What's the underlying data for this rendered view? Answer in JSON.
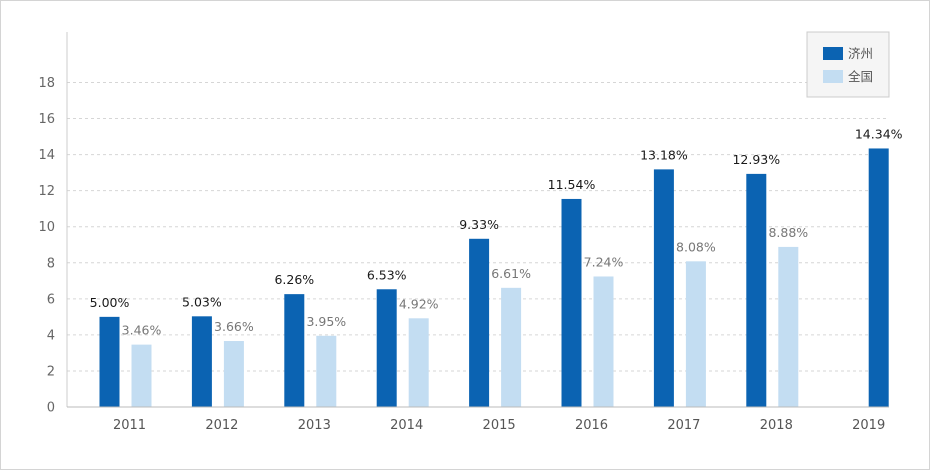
{
  "chart_data": {
    "type": "bar",
    "categories": [
      "2011",
      "2012",
      "2013",
      "2014",
      "2015",
      "2016",
      "2017",
      "2018",
      "2019"
    ],
    "series": [
      {
        "name": "济州",
        "color": "#0b63b2",
        "values": [
          5.0,
          5.03,
          6.26,
          6.53,
          9.33,
          11.54,
          13.18,
          12.93,
          14.34
        ],
        "labels": [
          "5.00%",
          "5.03%",
          "6.26%",
          "6.53%",
          "9.33%",
          "11.54%",
          "13.18%",
          "12.93%",
          "14.34%"
        ]
      },
      {
        "name": "全国",
        "color": "#c3ddf2",
        "values": [
          3.46,
          3.66,
          3.95,
          4.92,
          6.61,
          7.24,
          8.08,
          8.88,
          null
        ],
        "labels": [
          "3.46%",
          "3.66%",
          "3.95%",
          "4.92%",
          "6.61%",
          "7.24%",
          "8.08%",
          "8.88%",
          null
        ]
      }
    ],
    "yticks": [
      0,
      2,
      4,
      6,
      8,
      10,
      12,
      14,
      16,
      18
    ],
    "ylim": [
      0,
      20.8
    ],
    "grid": true,
    "legend": "top-right"
  }
}
